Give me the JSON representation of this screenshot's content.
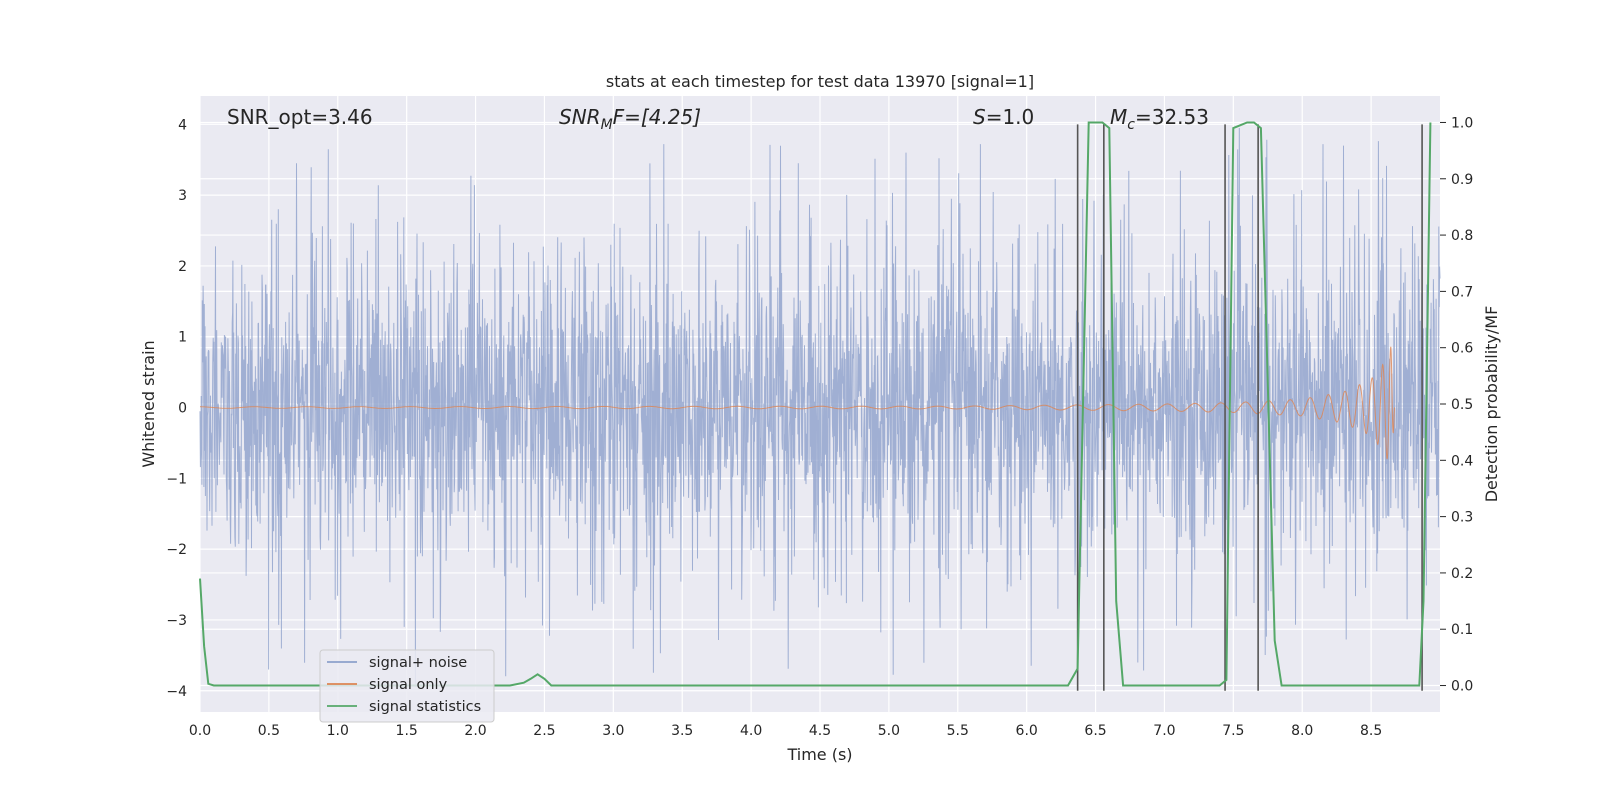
{
  "chart_data": {
    "type": "line",
    "title": "stats at each timestep for test data 13970 [signal=1]",
    "xlabel": "Time (s)",
    "ylabel": "Whitened strain",
    "y2label": "Detection probability/MF",
    "xlim": [
      0,
      9
    ],
    "ylim": [
      -4.3,
      4.4
    ],
    "y2lim": [
      -0.047,
      1.047
    ],
    "x_ticks": [
      0.0,
      0.5,
      1.0,
      1.5,
      2.0,
      2.5,
      3.0,
      3.5,
      4.0,
      4.5,
      5.0,
      5.5,
      6.0,
      6.5,
      7.0,
      7.5,
      8.0,
      8.5
    ],
    "x_tick_labels": [
      "0.0",
      "0.5",
      "1.0",
      "1.5",
      "2.0",
      "2.5",
      "3.0",
      "3.5",
      "4.0",
      "4.5",
      "5.0",
      "5.5",
      "6.0",
      "6.5",
      "7.0",
      "7.5",
      "8.0",
      "8.5"
    ],
    "y_ticks": [
      -4,
      -3,
      -2,
      -1,
      0,
      1,
      2,
      3,
      4
    ],
    "y_tick_labels": [
      "−4",
      "−3",
      "−2",
      "−1",
      "0",
      "1",
      "2",
      "3",
      "4"
    ],
    "y2_ticks": [
      0.0,
      0.1,
      0.2,
      0.3,
      0.4,
      0.5,
      0.6,
      0.7,
      0.8,
      0.9,
      1.0
    ],
    "y2_tick_labels": [
      "0.0",
      "0.1",
      "0.2",
      "0.3",
      "0.4",
      "0.5",
      "0.6",
      "0.7",
      "0.8",
      "0.9",
      "1.0"
    ],
    "grid": true,
    "legend_position": "lower-left",
    "annotations": {
      "snr_opt": "SNR_opt=3.46",
      "snr_mf_base": "SNR",
      "snr_mf_sub": "M",
      "snr_mf_rest": "F=[4.25]",
      "s_var": "S",
      "s_rest": "=1.0",
      "mc_var": "M",
      "mc_sub": "c",
      "mc_rest": "=32.53"
    },
    "series": [
      {
        "name": "signal+ noise",
        "color": "#8da0cb",
        "typical_amplitude": 1.6,
        "peak_amplitude": 4.0,
        "x_range": [
          0,
          9
        ]
      },
      {
        "name": "signal only",
        "color": "#dd8452",
        "envelope": [
          [
            0.0,
            0.01
          ],
          [
            5.5,
            0.02
          ],
          [
            7.0,
            0.05
          ],
          [
            7.5,
            0.07
          ],
          [
            8.0,
            0.12
          ],
          [
            8.3,
            0.22
          ],
          [
            8.5,
            0.4
          ],
          [
            8.6,
            0.65
          ],
          [
            8.65,
            0.9
          ],
          [
            8.67,
            0.0
          ]
        ]
      },
      {
        "name": "signal statistics",
        "color": "#55a868",
        "axis": "right",
        "x": [
          0.0,
          0.03,
          0.06,
          0.1,
          0.15,
          0.5,
          1.0,
          1.5,
          2.0,
          2.25,
          2.35,
          2.4,
          2.45,
          2.5,
          2.55,
          2.6,
          3.0,
          4.0,
          5.0,
          6.0,
          6.3,
          6.37,
          6.45,
          6.55,
          6.6,
          6.65,
          6.7,
          7.0,
          7.4,
          7.45,
          7.5,
          7.6,
          7.65,
          7.7,
          7.8,
          7.85,
          8.0,
          8.5,
          8.85,
          8.88,
          8.93
        ],
        "y": [
          0.19,
          0.07,
          0.003,
          0.0,
          0.0,
          0.0,
          0.0,
          0.0,
          0.0,
          0.0,
          0.005,
          0.012,
          0.02,
          0.012,
          0.0,
          0.0,
          0.0,
          0.0,
          0.0,
          0.0,
          0.0,
          0.03,
          1.0,
          1.0,
          0.99,
          0.15,
          0.0,
          0.0,
          0.0,
          0.01,
          0.99,
          1.0,
          1.0,
          0.99,
          0.08,
          0.0,
          0.0,
          0.0,
          0.0,
          0.15,
          1.0
        ]
      }
    ],
    "vertical_lines": [
      {
        "x": 6.37,
        "y_range": [
          -4,
          4
        ]
      },
      {
        "x": 6.56,
        "y_range": [
          -4,
          4
        ]
      },
      {
        "x": 7.44,
        "y_range": [
          -4,
          4
        ]
      },
      {
        "x": 7.68,
        "y_range": [
          -4,
          4
        ]
      },
      {
        "x": 8.87,
        "y_range": [
          -4,
          4
        ]
      }
    ]
  }
}
